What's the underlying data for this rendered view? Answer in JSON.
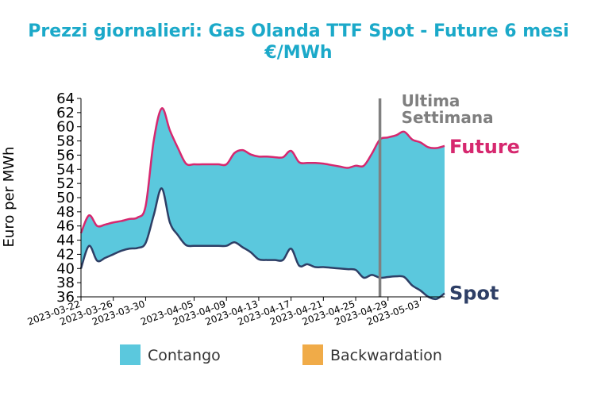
{
  "chart_data": {
    "type": "area",
    "title_line1": "Prezzi giornalieri: Gas Olanda TTF Spot - Future 6 mesi",
    "title_line2": "€/MWh",
    "xlabel": "",
    "ylabel": "Euro per MWh",
    "ylim": [
      36,
      64
    ],
    "y_ticks": [
      36,
      38,
      40,
      42,
      44,
      46,
      48,
      50,
      52,
      54,
      56,
      58,
      60,
      62,
      64
    ],
    "xlim": [
      "2023-03-22",
      "2023-05-06"
    ],
    "x_ticks": [
      "2023-03-22",
      "2023-03-26",
      "2023-03-30",
      "2023-04-05",
      "2023-04-09",
      "2023-04-13",
      "2023-04-17",
      "2023-04-21",
      "2023-04-25",
      "2023-04-29",
      "2023-05-03"
    ],
    "marker_line": {
      "x": "2023-04-28",
      "label_line1": "Ultima",
      "label_line2": "Settimana",
      "color": "#808080"
    },
    "series": [
      {
        "name": "Future",
        "color": "#d6286f",
        "points": [
          [
            "2023-03-22",
            45.0
          ],
          [
            "2023-03-23",
            47.5
          ],
          [
            "2023-03-24",
            46.0
          ],
          [
            "2023-03-25",
            46.2
          ],
          [
            "2023-03-26",
            46.5
          ],
          [
            "2023-03-27",
            46.7
          ],
          [
            "2023-03-28",
            47.0
          ],
          [
            "2023-03-29",
            47.2
          ],
          [
            "2023-03-30",
            48.8
          ],
          [
            "2023-03-31",
            58.0
          ],
          [
            "2023-04-01",
            62.6
          ],
          [
            "2023-04-02",
            59.5
          ],
          [
            "2023-04-03",
            57.0
          ],
          [
            "2023-04-04",
            54.8
          ],
          [
            "2023-04-05",
            54.7
          ],
          [
            "2023-04-06",
            54.7
          ],
          [
            "2023-04-07",
            54.7
          ],
          [
            "2023-04-08",
            54.7
          ],
          [
            "2023-04-09",
            54.7
          ],
          [
            "2023-04-10",
            56.3
          ],
          [
            "2023-04-11",
            56.7
          ],
          [
            "2023-04-12",
            56.1
          ],
          [
            "2023-04-13",
            55.8
          ],
          [
            "2023-04-14",
            55.8
          ],
          [
            "2023-04-15",
            55.7
          ],
          [
            "2023-04-16",
            55.7
          ],
          [
            "2023-04-17",
            56.6
          ],
          [
            "2023-04-18",
            55.0
          ],
          [
            "2023-04-19",
            54.9
          ],
          [
            "2023-04-20",
            54.9
          ],
          [
            "2023-04-21",
            54.8
          ],
          [
            "2023-04-22",
            54.6
          ],
          [
            "2023-04-23",
            54.4
          ],
          [
            "2023-04-24",
            54.2
          ],
          [
            "2023-04-25",
            54.5
          ],
          [
            "2023-04-26",
            54.5
          ],
          [
            "2023-04-27",
            56.2
          ],
          [
            "2023-04-28",
            58.2
          ],
          [
            "2023-04-29",
            58.5
          ],
          [
            "2023-04-30",
            58.8
          ],
          [
            "2023-05-01",
            59.3
          ],
          [
            "2023-05-02",
            58.2
          ],
          [
            "2023-05-03",
            57.8
          ],
          [
            "2023-05-04",
            57.1
          ],
          [
            "2023-05-05",
            57.0
          ],
          [
            "2023-05-06",
            57.3
          ]
        ]
      },
      {
        "name": "Spot",
        "color": "#2e3f66",
        "points": [
          [
            "2023-03-22",
            40.0
          ],
          [
            "2023-03-23",
            43.2
          ],
          [
            "2023-03-24",
            41.1
          ],
          [
            "2023-03-25",
            41.5
          ],
          [
            "2023-03-26",
            42.0
          ],
          [
            "2023-03-27",
            42.5
          ],
          [
            "2023-03-28",
            42.8
          ],
          [
            "2023-03-29",
            42.9
          ],
          [
            "2023-03-30",
            43.6
          ],
          [
            "2023-03-31",
            47.5
          ],
          [
            "2023-04-01",
            51.3
          ],
          [
            "2023-04-02",
            46.5
          ],
          [
            "2023-04-03",
            44.7
          ],
          [
            "2023-04-04",
            43.3
          ],
          [
            "2023-04-05",
            43.2
          ],
          [
            "2023-04-06",
            43.2
          ],
          [
            "2023-04-07",
            43.2
          ],
          [
            "2023-04-08",
            43.2
          ],
          [
            "2023-04-09",
            43.2
          ],
          [
            "2023-04-10",
            43.7
          ],
          [
            "2023-04-11",
            43.0
          ],
          [
            "2023-04-12",
            42.3
          ],
          [
            "2023-04-13",
            41.3
          ],
          [
            "2023-04-14",
            41.2
          ],
          [
            "2023-04-15",
            41.2
          ],
          [
            "2023-04-16",
            41.2
          ],
          [
            "2023-04-17",
            42.8
          ],
          [
            "2023-04-18",
            40.4
          ],
          [
            "2023-04-19",
            40.6
          ],
          [
            "2023-04-20",
            40.2
          ],
          [
            "2023-04-21",
            40.2
          ],
          [
            "2023-04-22",
            40.1
          ],
          [
            "2023-04-23",
            40.0
          ],
          [
            "2023-04-24",
            39.9
          ],
          [
            "2023-04-25",
            39.8
          ],
          [
            "2023-04-26",
            38.7
          ],
          [
            "2023-04-27",
            39.1
          ],
          [
            "2023-04-28",
            38.7
          ],
          [
            "2023-04-29",
            38.8
          ],
          [
            "2023-04-30",
            38.9
          ],
          [
            "2023-05-01",
            38.8
          ],
          [
            "2023-05-02",
            37.6
          ],
          [
            "2023-05-03",
            36.9
          ],
          [
            "2023-05-04",
            36.0
          ],
          [
            "2023-05-05",
            35.7
          ],
          [
            "2023-05-06",
            36.5
          ]
        ]
      }
    ],
    "fill": {
      "contango_color": "#5bc8dd",
      "backwardation_color": "#f0ab48"
    },
    "legend": {
      "position": "bottom",
      "items": [
        {
          "label": "Contango",
          "color": "#5bc8dd"
        },
        {
          "label": "Backwardation",
          "color": "#f0ab48"
        }
      ]
    },
    "grid": false
  }
}
